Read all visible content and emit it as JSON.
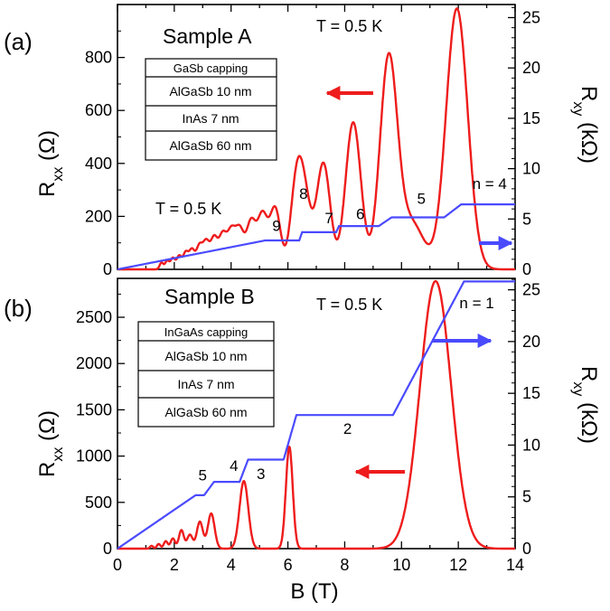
{
  "chart_data": [
    {
      "type": "line",
      "panel_label": "(a)",
      "sample_title": "Sample A",
      "temperature_label_top": "T = 0.5 K",
      "temperature_label_mid": "T = 0.5 K",
      "ylabel_left": "R",
      "ylabel_left_sub": "xx",
      "ylabel_left_unit": " (Ω)",
      "ylabel_right": "R",
      "ylabel_right_sub": "xy",
      "ylabel_right_unit": " (kΩ)",
      "xlim": [
        0,
        14
      ],
      "ylim_left": [
        0,
        1000
      ],
      "ylim_right": [
        0,
        26.3
      ],
      "yticks_left": [
        0,
        200,
        400,
        600,
        800
      ],
      "yticks_right": [
        0,
        5,
        10,
        15,
        20,
        25
      ],
      "layer_stack": [
        "GaSb capping",
        "AlGaSb  10 nm",
        "InAs 7 nm",
        "AlGaSb 60 nm"
      ],
      "filling_labels": [
        {
          "text": "n = 4",
          "x": 13.1,
          "y": 8.0
        },
        {
          "text": "5",
          "x": 10.7,
          "y": 6.5
        },
        {
          "text": "6",
          "x": 8.55,
          "y": 5.0
        },
        {
          "text": "7",
          "x": 7.45,
          "y": 4.6
        },
        {
          "text": "8",
          "x": 6.55,
          "y": 7.0
        },
        {
          "text": "9",
          "x": 5.6,
          "y": 3.8
        }
      ],
      "colors": {
        "rxx": "#ee1c1c",
        "rxy": "#4a4aff"
      },
      "rxx_peaks": [
        {
          "B": 1.55,
          "R": 25
        },
        {
          "B": 1.75,
          "R": 32
        },
        {
          "B": 1.95,
          "R": 42
        },
        {
          "B": 2.17,
          "R": 50
        },
        {
          "B": 2.4,
          "R": 62
        },
        {
          "B": 2.62,
          "R": 72
        },
        {
          "B": 2.88,
          "R": 85
        },
        {
          "B": 3.12,
          "R": 100
        },
        {
          "B": 3.4,
          "R": 115
        },
        {
          "B": 3.7,
          "R": 125
        },
        {
          "B": 4.0,
          "R": 135
        },
        {
          "B": 4.3,
          "R": 145
        },
        {
          "B": 4.7,
          "R": 175
        },
        {
          "B": 5.1,
          "R": 200
        },
        {
          "B": 5.55,
          "R": 230
        },
        {
          "B": 6.3,
          "R": 305
        },
        {
          "B": 6.6,
          "R": 235
        },
        {
          "B": 7.25,
          "R": 400
        },
        {
          "B": 8.3,
          "R": 555
        },
        {
          "B": 9.55,
          "R": 800
        },
        {
          "B": 10.2,
          "R": 110
        },
        {
          "B": 10.6,
          "R": 95
        },
        {
          "B": 11.95,
          "R": 985
        }
      ],
      "rxy_plateaus_kohm": [
        {
          "from": 5.2,
          "to": 6.4,
          "value": 2.87
        },
        {
          "from": 6.5,
          "to": 7.7,
          "value": 3.69
        },
        {
          "from": 7.8,
          "to": 9.2,
          "value": 4.3
        },
        {
          "from": 9.65,
          "to": 11.5,
          "value": 5.16
        },
        {
          "from": 12.1,
          "to": 14.0,
          "value": 6.45
        }
      ]
    },
    {
      "type": "line",
      "panel_label": "(b)",
      "sample_title": "Sample B",
      "temperature_label_top": "T = 0.5 K",
      "ylabel_left": "R",
      "ylabel_left_sub": "xx",
      "ylabel_left_unit": " (Ω)",
      "ylabel_right": "R",
      "ylabel_right_sub": "xy",
      "ylabel_right_unit": " (kΩ)",
      "xlabel": "B (T)",
      "xlim": [
        0,
        14
      ],
      "xticks": [
        0,
        2,
        4,
        6,
        8,
        10,
        12,
        14
      ],
      "ylim_left": [
        0,
        2920
      ],
      "ylim_right": [
        0,
        26.1
      ],
      "yticks_left": [
        0,
        500,
        1000,
        1500,
        2000,
        2500
      ],
      "yticks_right": [
        0,
        5,
        10,
        15,
        20,
        25
      ],
      "layer_stack": [
        "InGaAs capping",
        "AlGaSb  10 nm",
        "InAs 7 nm",
        "AlGaSb 60 nm"
      ],
      "filling_labels": [
        {
          "text": "n = 1",
          "x": 12.65,
          "y": 23.2
        },
        {
          "text": "2",
          "x": 8.1,
          "y": 11.1
        },
        {
          "text": "3",
          "x": 5.05,
          "y": 6.7
        },
        {
          "text": "4",
          "x": 4.1,
          "y": 7.5
        },
        {
          "text": "5",
          "x": 3.0,
          "y": 6.6
        }
      ],
      "colors": {
        "rxx": "#ee1c1c",
        "rxy": "#4a4aff"
      },
      "rxx_peaks": [
        {
          "B": 1.2,
          "R": 30
        },
        {
          "B": 1.45,
          "R": 50
        },
        {
          "B": 1.7,
          "R": 80
        },
        {
          "B": 1.95,
          "R": 110
        },
        {
          "B": 2.25,
          "R": 200
        },
        {
          "B": 2.55,
          "R": 150
        },
        {
          "B": 2.9,
          "R": 290
        },
        {
          "B": 3.3,
          "R": 380
        },
        {
          "B": 4.45,
          "R": 730
        },
        {
          "B": 6.05,
          "R": 1100
        },
        {
          "B": 11.2,
          "R": 2890
        }
      ],
      "rxy_plateaus_kohm": [
        {
          "from": 2.75,
          "to": 3.05,
          "value": 5.16
        },
        {
          "from": 3.4,
          "to": 4.3,
          "value": 6.45
        },
        {
          "from": 4.6,
          "to": 5.85,
          "value": 8.6
        },
        {
          "from": 6.3,
          "to": 9.7,
          "value": 12.9
        },
        {
          "from": 12.2,
          "to": 14.0,
          "value": 25.8
        }
      ]
    }
  ]
}
